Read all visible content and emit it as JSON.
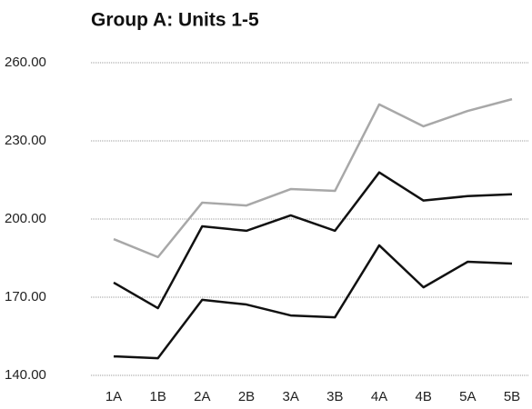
{
  "chart_data": {
    "type": "line",
    "title": "Group A: Units 1-5",
    "categories": [
      "1A",
      "1B",
      "2A",
      "2B",
      "3A",
      "3B",
      "4A",
      "4B",
      "5A",
      "5B"
    ],
    "series": [
      {
        "color": "#a8a8a8",
        "values": [
          192.3,
          185.4,
          206.3,
          205.2,
          211.5,
          210.8,
          244.0,
          235.6,
          241.5,
          246.0
        ]
      },
      {
        "color": "#111111",
        "values": [
          175.6,
          165.8,
          197.2,
          195.5,
          201.4,
          195.5,
          217.9,
          207.1,
          208.8,
          209.5
        ]
      },
      {
        "color": "#111111",
        "values": [
          147.3,
          146.6,
          169.0,
          167.2,
          163.0,
          162.3,
          189.9,
          173.8,
          183.6,
          182.9
        ]
      }
    ],
    "ylim": [
      140,
      260
    ],
    "yticks": [
      {
        "value": 140,
        "label": "140.00"
      },
      {
        "value": 170,
        "label": "170.00"
      },
      {
        "value": 200,
        "label": "200.00"
      },
      {
        "value": 230,
        "label": "230.00"
      },
      {
        "value": 260,
        "label": "260.00"
      }
    ],
    "grid": true
  }
}
